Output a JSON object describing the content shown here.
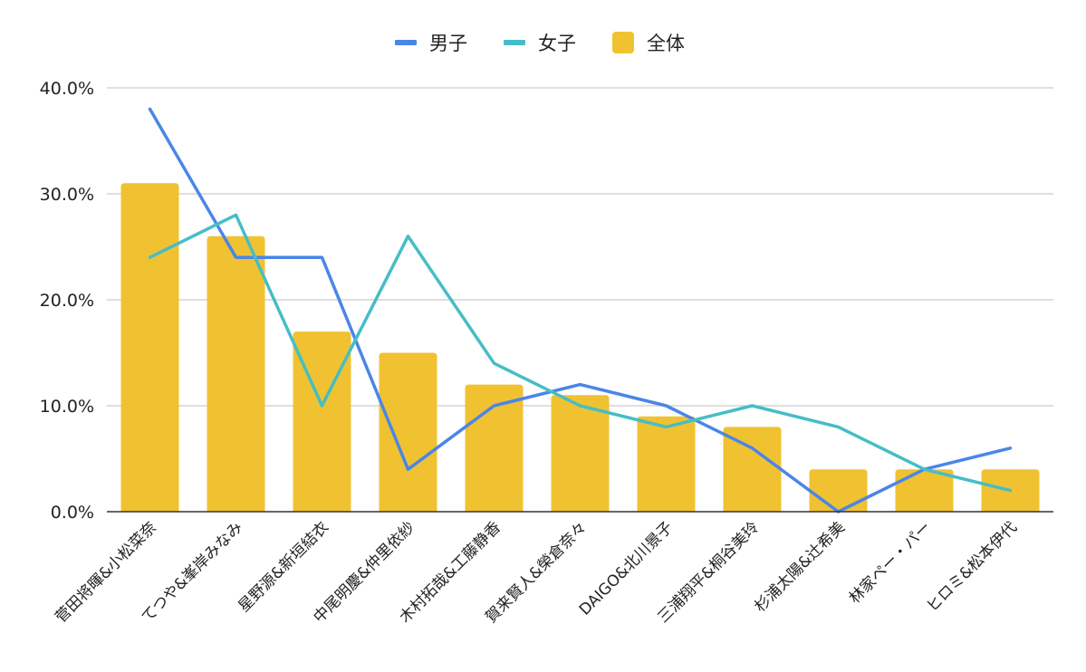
{
  "chart_data": {
    "type": "bar",
    "categories": [
      "菅田将暉&小松菜奈",
      "てつや&峯岸みなみ",
      "星野源&新垣結衣",
      "中尾明慶&仲里依紗",
      "木村拓哉&工藤静香",
      "賀来賢人&榮倉奈々",
      "DAIGO&北川景子",
      "三浦翔平&桐谷美玲",
      "杉浦太陽&辻希美",
      "林家ペー・パー",
      "ヒロミ&松本伊代"
    ],
    "series": [
      {
        "name": "全体",
        "type": "bar",
        "color": "#F0C231",
        "values": [
          31.0,
          26.0,
          17.0,
          15.0,
          12.0,
          11.0,
          9.0,
          8.0,
          4.0,
          4.0,
          4.0
        ]
      },
      {
        "name": "男子",
        "type": "line",
        "color": "#4A86E8",
        "values": [
          38.0,
          24.0,
          24.0,
          4.0,
          10.0,
          12.0,
          10.0,
          6.0,
          0.0,
          4.0,
          6.0
        ]
      },
      {
        "name": "女子",
        "type": "line",
        "color": "#46BDC6",
        "values": [
          24.0,
          28.0,
          10.0,
          26.0,
          14.0,
          10.0,
          8.0,
          10.0,
          8.0,
          4.0,
          2.0
        ]
      }
    ],
    "legend": [
      {
        "label": "男子",
        "color": "#4A86E8",
        "marker": "line"
      },
      {
        "label": "女子",
        "color": "#46BDC6",
        "marker": "line"
      },
      {
        "label": "全体",
        "color": "#F0C231",
        "marker": "box"
      }
    ],
    "legend_position": "top",
    "y_ticks": [
      "0.0%",
      "10.0%",
      "20.0%",
      "30.0%",
      "40.0%"
    ],
    "ylim": [
      0,
      40
    ],
    "grid": true
  }
}
